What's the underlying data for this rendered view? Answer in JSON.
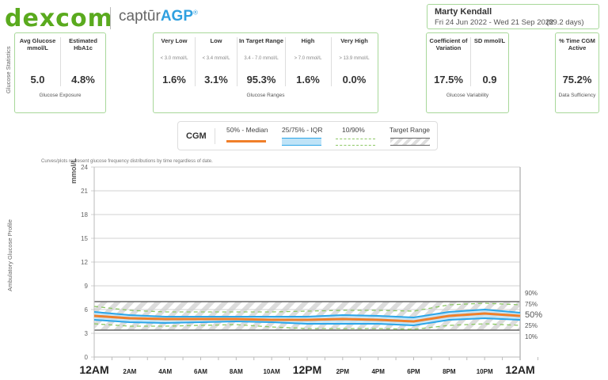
{
  "header": {
    "brand": "Dexcom",
    "product_prefix": "captūr",
    "product_suffix": "AGP",
    "product_mark": "®"
  },
  "patient": {
    "name": "Marty Kendall",
    "date_range": "Fri 24 Jun 2022 - Wed 21 Sep 2022",
    "days": "(89.2 days)"
  },
  "stats_label": "Glucose Statistics",
  "exposure": {
    "footer": "Glucose Exposure",
    "items": [
      {
        "label": "Avg Glucose mmol/L",
        "value": "5.0"
      },
      {
        "label": "Estimated HbA1c",
        "value": "4.8%"
      }
    ]
  },
  "ranges": {
    "footer": "Glucose Ranges",
    "items": [
      {
        "label": "Very Low",
        "range": "< 3.0 mmol/L",
        "value": "1.6%"
      },
      {
        "label": "Low",
        "range": "< 3.4 mmol/L",
        "value": "3.1%"
      },
      {
        "label": "In Target Range",
        "range": "3.4 - 7.0 mmol/L",
        "value": "95.3%"
      },
      {
        "label": "High",
        "range": "> 7.0 mmol/L",
        "value": "1.6%"
      },
      {
        "label": "Very High",
        "range": "> 13.9 mmol/L",
        "value": "0.0%"
      }
    ]
  },
  "variability": {
    "footer": "Glucose Variability",
    "items": [
      {
        "label": "Coefficient of Variation",
        "value": "17.5%"
      },
      {
        "label": "SD mmol/L",
        "value": "0.9"
      }
    ]
  },
  "sufficiency": {
    "footer": "Data Sufficiency",
    "label": "% Time CGM Active",
    "value": "75.2%"
  },
  "legend": {
    "title": "CGM",
    "median": "50% - Median",
    "iqr": "25/75% - IQR",
    "p10_90": "10/90%",
    "target": "Target Range"
  },
  "note": "Curves/plots represent glucose frequency distributions by time regardless of date.",
  "agp_label": "Ambulatory Glucose Profile",
  "colors": {
    "median": "#f07f2a",
    "iqr_line": "#2ca6e8",
    "iqr_fill": "#bfe3f7",
    "p10_90": "#8cc864",
    "box_border": "#a8d89a",
    "brand": "#5aaa1e"
  },
  "chart_data": {
    "type": "line",
    "ylabel": "mmol/L",
    "ylim": [
      0,
      24
    ],
    "yticks": [
      "0",
      "3",
      "6",
      "9",
      "12",
      "15",
      "18",
      "21",
      "24"
    ],
    "xlim": [
      0,
      24
    ],
    "xticks": [
      "12AM",
      "2AM",
      "4AM",
      "6AM",
      "8AM",
      "10AM",
      "12PM",
      "2PM",
      "4PM",
      "6PM",
      "8PM",
      "10PM",
      "12AM"
    ],
    "target_range": [
      3.4,
      7.0
    ],
    "percentile_labels": [
      "90%",
      "75%",
      "50%",
      "25%",
      "10%"
    ],
    "x": [
      0,
      2,
      4,
      6,
      8,
      10,
      12,
      14,
      16,
      18,
      20,
      22,
      24
    ],
    "series": [
      {
        "name": "90%",
        "values": [
          6.4,
          5.9,
          5.7,
          5.7,
          5.7,
          5.7,
          5.8,
          5.9,
          5.9,
          5.8,
          6.6,
          6.8,
          6.6
        ]
      },
      {
        "name": "75%",
        "values": [
          5.7,
          5.3,
          5.1,
          5.1,
          5.1,
          5.1,
          5.1,
          5.3,
          5.2,
          5.0,
          5.7,
          6.0,
          5.6
        ]
      },
      {
        "name": "50%",
        "values": [
          5.2,
          4.9,
          4.8,
          4.8,
          4.8,
          4.7,
          4.7,
          4.8,
          4.7,
          4.5,
          5.2,
          5.5,
          5.2
        ]
      },
      {
        "name": "25%",
        "values": [
          4.7,
          4.4,
          4.3,
          4.4,
          4.5,
          4.4,
          4.2,
          4.2,
          4.2,
          4.0,
          4.7,
          4.9,
          4.7
        ]
      },
      {
        "name": "10%",
        "values": [
          4.2,
          3.9,
          3.9,
          4.0,
          4.1,
          3.8,
          3.6,
          3.6,
          3.6,
          3.5,
          4.0,
          4.2,
          4.0
        ]
      }
    ]
  }
}
